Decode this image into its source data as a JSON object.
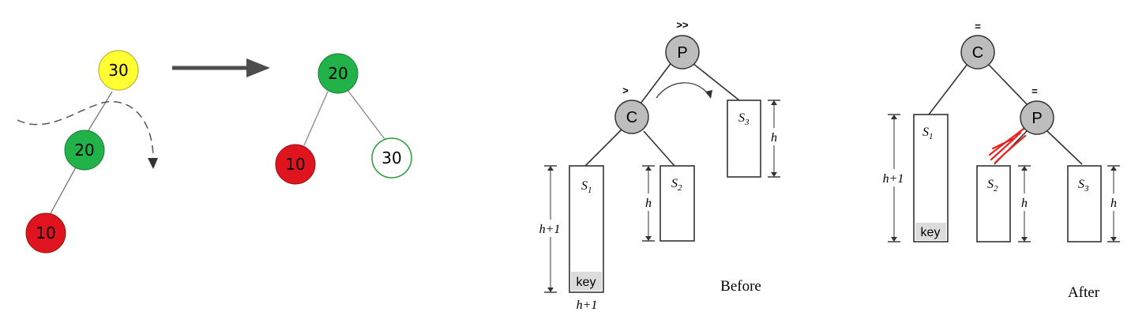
{
  "left_panel": {
    "before_nodes": [
      "30",
      "20",
      "10"
    ],
    "after_nodes": [
      "20",
      "10",
      "30"
    ],
    "colors": {
      "yellow": "#ffff33",
      "green": "#22b24a",
      "red": "#e0141e",
      "white": "#ffffff",
      "arrow": "#4d4d4d"
    }
  },
  "right_panel": {
    "before": {
      "node_p": "P",
      "node_p_symbol": ">>",
      "node_c": "C",
      "node_c_symbol": ">",
      "s1": {
        "letter": "S",
        "index": "1"
      },
      "s2": {
        "letter": "S",
        "index": "2"
      },
      "s3": {
        "letter": "S",
        "index": "3"
      },
      "height_s1": "h+1",
      "height_s1_bottom": "h+1",
      "height_s2": "h",
      "height_s3": "h",
      "key_label": "key",
      "caption": "Before"
    },
    "after": {
      "node_c": "C",
      "node_c_symbol": "=",
      "node_p": "P",
      "node_p_symbol": "=",
      "s1": {
        "letter": "S",
        "index": "1"
      },
      "s2": {
        "letter": "S",
        "index": "2"
      },
      "s3": {
        "letter": "S",
        "index": "3"
      },
      "height_s1": "h+1",
      "height_s2": "h",
      "height_s3": "h",
      "key_label": "key",
      "caption": "After"
    },
    "colors": {
      "node_fill": "#bdbdbd",
      "key_fill": "#dcdcdc",
      "scribble": "#e8231f"
    }
  }
}
